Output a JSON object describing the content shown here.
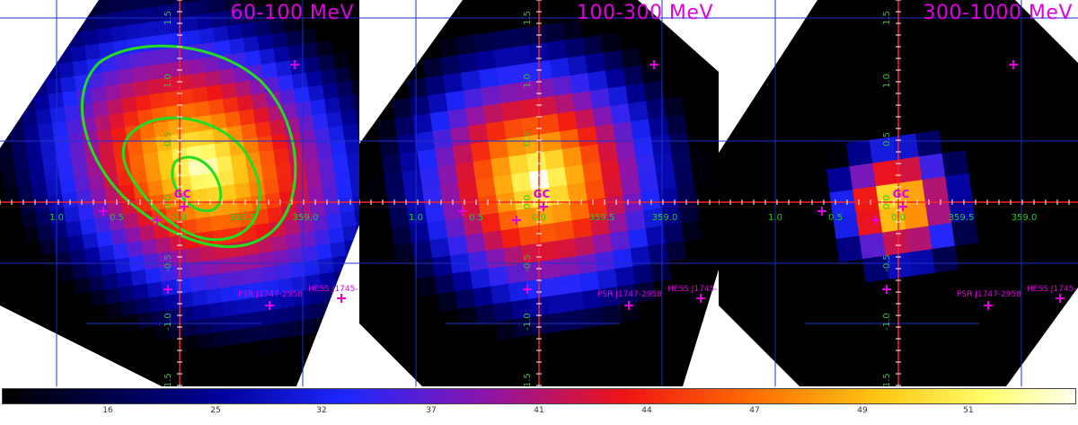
{
  "panels": [
    {
      "energy_label": "60-100 MeV",
      "contours": true
    },
    {
      "energy_label": "100-300 MeV",
      "contours": false
    },
    {
      "energy_label": "300-1000 MeV",
      "contours": false
    }
  ],
  "annotations": {
    "gc": "GC",
    "psr": "PSR J1747-2958",
    "hess": "HESS J1745-"
  },
  "axis_labels": {
    "lon": [
      "1.0",
      "0.5",
      "0.0",
      "359.5",
      "359.0"
    ],
    "lat": [
      "1.5",
      "1.0",
      "0.5",
      "0.0",
      "-0.5",
      "-1.0",
      "-1.5"
    ]
  },
  "colorbar_ticks": [
    "16",
    "25",
    "32",
    "37",
    "41",
    "44",
    "47",
    "49",
    "51"
  ],
  "colors": {
    "marker": "#e000e0",
    "grid": "#2030c8",
    "crosshair": "#ff2020",
    "contour": "#22dd22",
    "axis_text": "#22cc22"
  }
}
